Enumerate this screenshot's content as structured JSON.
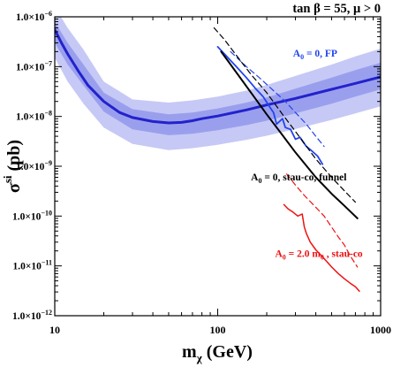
{
  "chart_data": {
    "type": "line",
    "title": "tan β = 55,  μ > 0",
    "xlabel": "m",
    "xlabel_sub": "χ",
    "xlabel_units": "(GeV)",
    "ylabel": "σ",
    "ylabel_sup": "si",
    "ylabel_units": "(pb)",
    "x_scale": "log",
    "y_scale": "log",
    "xlim": [
      10,
      1000
    ],
    "ylim": [
      1e-12,
      1e-06
    ],
    "x_ticks": [
      {
        "value": 10,
        "label": "10"
      },
      {
        "value": 100,
        "label": "100"
      },
      {
        "value": 1000,
        "label": "1000"
      }
    ],
    "y_ticks": [
      {
        "value": 1e-06,
        "base": "1.0×10",
        "exp": "−6"
      },
      {
        "value": 1e-07,
        "base": "1.0×10",
        "exp": "−7"
      },
      {
        "value": 1e-08,
        "base": "1.0×10",
        "exp": "−8"
      },
      {
        "value": 1e-09,
        "base": "1.0×10",
        "exp": "−9"
      },
      {
        "value": 1e-10,
        "base": "1.0×10",
        "exp": "−10"
      },
      {
        "value": 1e-11,
        "base": "1.0×10",
        "exp": "−11"
      },
      {
        "value": 1e-12,
        "base": "1.0×10",
        "exp": "−12"
      }
    ],
    "colors": {
      "band_outer": "#c6c9f5",
      "band_inner": "#9a9fed",
      "sensitivity": "#2222cc",
      "fp": "#2244ee",
      "funnel": "#000000",
      "staus": "#ee1111"
    },
    "band": {
      "x": [
        10,
        12,
        15,
        20,
        30,
        50,
        70,
        100,
        150,
        200,
        300,
        500,
        700,
        1000
      ],
      "outer_hi": [
        1.6e-06,
        6e-07,
        2.2e-07,
        5e-08,
        2.2e-08,
        1.9e-08,
        2.1e-08,
        2.5e-08,
        3.3e-08,
        4.3e-08,
        6.5e-08,
        1.1e-07,
        1.6e-07,
        2.3e-07
      ],
      "inner_hi": [
        8e-07,
        3e-07,
        1.1e-07,
        3e-08,
        1.4e-08,
        1.1e-08,
        1.2e-08,
        1.45e-08,
        1.9e-08,
        2.4e-08,
        3.6e-08,
        6e-08,
        8.5e-08,
        1.2e-07
      ],
      "inner_lo": [
        3e-07,
        1.1e-07,
        4.2e-08,
        1.25e-08,
        5.5e-09,
        4.2e-09,
        4.5e-09,
        5.3e-09,
        6.7e-09,
        8.2e-09,
        1.15e-08,
        1.8e-08,
        2.5e-08,
        3.5e-08
      ],
      "outer_lo": [
        1.5e-07,
        5e-08,
        1.8e-08,
        6e-09,
        2.8e-09,
        2.1e-09,
        2.3e-09,
        2.7e-09,
        3.4e-09,
        4.1e-09,
        5.6e-09,
        8.5e-09,
        1.15e-08,
        1.6e-08
      ]
    },
    "series": [
      {
        "id": "sensitivity",
        "style": "solid",
        "width": 3,
        "x": [
          10,
          11,
          12,
          14,
          16,
          20,
          25,
          30,
          40,
          50,
          60,
          70,
          80,
          100,
          150,
          200,
          300,
          500,
          700,
          1000
        ],
        "y": [
          5.5e-07,
          3e-07,
          1.8e-07,
          8e-08,
          4.2e-08,
          2e-08,
          1.2e-08,
          9.5e-09,
          7.9e-09,
          7.4e-09,
          7.6e-09,
          8.2e-09,
          9e-09,
          1.02e-08,
          1.35e-08,
          1.7e-08,
          2.3e-08,
          3.5e-08,
          4.6e-08,
          6.2e-08
        ]
      },
      {
        "id": "fp-solid",
        "style": "solid",
        "width": 1.8,
        "color": "fp",
        "x": [
          100,
          110,
          130,
          150,
          170,
          190,
          210,
          220,
          230,
          250,
          260,
          280,
          300,
          320,
          350,
          380,
          410,
          440
        ],
        "y": [
          2.5e-07,
          1.8e-07,
          1e-07,
          6e-08,
          3.7e-08,
          2.5e-08,
          1.5e-08,
          1.2e-08,
          7e-09,
          9e-09,
          6e-09,
          5.5e-09,
          3.5e-09,
          3.8e-09,
          2.5e-09,
          2e-09,
          1.6e-09,
          1.1e-09
        ]
      },
      {
        "id": "fp-dashed",
        "style": "dashed",
        "width": 1.2,
        "color": "fp",
        "x": [
          120,
          150,
          180,
          220,
          260,
          300,
          350,
          400,
          450
        ],
        "y": [
          2e-07,
          1e-07,
          6e-08,
          3.3e-08,
          2e-08,
          1.2e-08,
          7e-09,
          4e-09,
          2.5e-09
        ]
      },
      {
        "id": "funnel-solid",
        "style": "solid",
        "width": 2,
        "color": "funnel",
        "x": [
          105,
          120,
          140,
          170,
          200,
          250,
          300,
          400,
          500,
          600,
          720
        ],
        "y": [
          2e-07,
          1.1e-07,
          5.5e-08,
          2.3e-08,
          1.1e-08,
          4.2e-09,
          1.9e-09,
          6e-10,
          2.8e-10,
          1.6e-10,
          9e-11
        ]
      },
      {
        "id": "funnel-dashed",
        "style": "dashed",
        "width": 1.2,
        "color": "funnel",
        "x": [
          95,
          110,
          130,
          160,
          200,
          250,
          300,
          400,
          500,
          600,
          700
        ],
        "y": [
          6e-07,
          3.5e-07,
          1.7e-07,
          7e-08,
          3e-08,
          1.1e-08,
          5e-09,
          1.4e-09,
          6e-10,
          3.2e-10,
          1.9e-10
        ]
      },
      {
        "id": "staus-solid",
        "style": "solid",
        "width": 1.5,
        "color": "staus",
        "x": [
          255,
          270,
          290,
          310,
          330,
          340,
          350,
          370,
          400,
          450,
          500,
          550,
          600,
          650,
          700,
          740
        ],
        "y": [
          1.7e-10,
          1.4e-10,
          1.2e-10,
          1e-10,
          1.1e-10,
          6e-11,
          4.5e-11,
          3e-11,
          2.1e-11,
          1.4e-11,
          9.5e-12,
          7e-12,
          5.5e-12,
          4.5e-12,
          3.8e-12,
          3.1e-12
        ]
      },
      {
        "id": "staus-dashed",
        "style": "dashed",
        "width": 1.2,
        "color": "staus",
        "x": [
          265,
          300,
          340,
          400,
          450,
          500,
          550,
          600,
          650,
          720
        ],
        "y": [
          7e-10,
          4.2e-10,
          2.6e-10,
          1.5e-10,
          1e-10,
          6e-11,
          3.8e-11,
          2.6e-11,
          1.6e-11,
          9.5e-12
        ]
      }
    ],
    "annotations": [
      {
        "id": "fp",
        "pre": "A",
        "sub": "0",
        "post": " = 0, FP",
        "color": "fp",
        "x": 290,
        "y": 1.6e-07
      },
      {
        "id": "funnel",
        "pre": "A",
        "sub": "0",
        "post": " = 0, stau-co, funnel",
        "color": "funnel",
        "x": 160,
        "y": 5.2e-10
      },
      {
        "id": "staus",
        "pre": "A",
        "sub": "0",
        "post": " = 2.0 m",
        "sub2": "0",
        "post2": " , stau-co",
        "color": "staus",
        "x": 225,
        "y": 1.5e-11
      }
    ]
  }
}
